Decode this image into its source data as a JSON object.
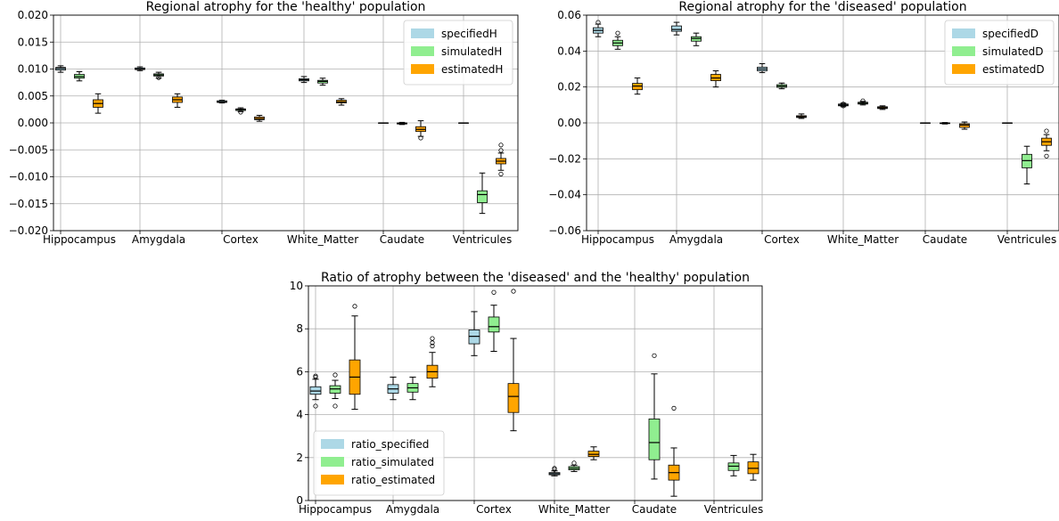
{
  "chart_data": [
    {
      "type": "boxplot",
      "title": "Regional atrophy for the 'healthy' population",
      "xlabel": "",
      "ylabel": "",
      "ylim": [
        -0.02,
        0.02
      ],
      "yticks": [
        -0.02,
        -0.015,
        -0.01,
        -0.005,
        0.0,
        0.005,
        0.01,
        0.015,
        0.02
      ],
      "ytick_labels": [
        "−0.020",
        "−0.015",
        "−0.010",
        "−0.005",
        "0.000",
        "0.005",
        "0.010",
        "0.015",
        "0.020"
      ],
      "categories": [
        "Hippocampus",
        "Amygdala",
        "Cortex",
        "White_Matter",
        "Caudate",
        "Ventricules"
      ],
      "grid": true,
      "legend_position": "top-right",
      "series": [
        {
          "name": "specifiedH",
          "color": "#add8e6",
          "boxes": [
            {
              "whislo": 0.0094,
              "q1": 0.0098,
              "med": 0.0101,
              "q3": 0.0103,
              "whishi": 0.0106,
              "fliers": []
            },
            {
              "whislo": 0.0097,
              "q1": 0.0099,
              "med": 0.01,
              "q3": 0.0102,
              "whishi": 0.0104,
              "fliers": []
            },
            {
              "whislo": 0.0037,
              "q1": 0.0038,
              "med": 0.0039,
              "q3": 0.0041,
              "whishi": 0.0042,
              "fliers": []
            },
            {
              "whislo": 0.0075,
              "q1": 0.0078,
              "med": 0.008,
              "q3": 0.0082,
              "whishi": 0.0086,
              "fliers": []
            },
            {
              "whislo": 0.0,
              "q1": 0.0,
              "med": 0.0,
              "q3": 0.0,
              "whishi": 0.0,
              "fliers": []
            },
            {
              "whislo": 0.0,
              "q1": 0.0,
              "med": 0.0,
              "q3": 0.0,
              "whishi": 0.0,
              "fliers": []
            }
          ]
        },
        {
          "name": "simulatedH",
          "color": "#90ee90",
          "boxes": [
            {
              "whislo": 0.0078,
              "q1": 0.0083,
              "med": 0.0086,
              "q3": 0.009,
              "whishi": 0.0095,
              "fliers": []
            },
            {
              "whislo": 0.0083,
              "q1": 0.0087,
              "med": 0.0089,
              "q3": 0.0091,
              "whishi": 0.0094,
              "fliers": [
                0.0084
              ]
            },
            {
              "whislo": 0.0021,
              "q1": 0.0023,
              "med": 0.0025,
              "q3": 0.0026,
              "whishi": 0.0028,
              "fliers": [
                0.002
              ]
            },
            {
              "whislo": 0.007,
              "q1": 0.0074,
              "med": 0.0077,
              "q3": 0.0079,
              "whishi": 0.0083,
              "fliers": []
            },
            {
              "whislo": -0.0003,
              "q1": -0.0002,
              "med": -0.0001,
              "q3": 0.0,
              "whishi": 0.0001,
              "fliers": []
            },
            {
              "whislo": -0.0168,
              "q1": -0.0148,
              "med": -0.0133,
              "q3": -0.0126,
              "whishi": -0.0093,
              "fliers": []
            }
          ]
        },
        {
          "name": "estimatedH",
          "color": "#ffa500",
          "boxes": [
            {
              "whislo": 0.0018,
              "q1": 0.0029,
              "med": 0.0036,
              "q3": 0.0043,
              "whishi": 0.0054,
              "fliers": []
            },
            {
              "whislo": 0.0029,
              "q1": 0.0038,
              "med": 0.0043,
              "q3": 0.0048,
              "whishi": 0.0054,
              "fliers": []
            },
            {
              "whislo": 0.0003,
              "q1": 0.0006,
              "med": 0.0008,
              "q3": 0.0011,
              "whishi": 0.0014,
              "fliers": []
            },
            {
              "whislo": 0.0033,
              "q1": 0.0037,
              "med": 0.0039,
              "q3": 0.0042,
              "whishi": 0.0045,
              "fliers": []
            },
            {
              "whislo": -0.0025,
              "q1": -0.0016,
              "med": -0.0012,
              "q3": -0.0007,
              "whishi": 0.0004,
              "fliers": [
                -0.0028
              ]
            },
            {
              "whislo": -0.0088,
              "q1": -0.0076,
              "med": -0.0071,
              "q3": -0.0066,
              "whishi": -0.0056,
              "fliers": [
                -0.0041,
                -0.0051,
                -0.0095
              ]
            }
          ]
        }
      ]
    },
    {
      "type": "boxplot",
      "title": "Regional atrophy for the 'diseased' population",
      "xlabel": "",
      "ylabel": "",
      "ylim": [
        -0.06,
        0.06
      ],
      "yticks": [
        -0.06,
        -0.04,
        -0.02,
        0.0,
        0.02,
        0.04,
        0.06
      ],
      "ytick_labels": [
        "−0.06",
        "−0.04",
        "−0.02",
        "0.00",
        "0.02",
        "0.04",
        "0.06"
      ],
      "categories": [
        "Hippocampus",
        "Amygdala",
        "Cortex",
        "White_Matter",
        "Caudate",
        "Ventricules"
      ],
      "grid": true,
      "legend_position": "top-right",
      "series": [
        {
          "name": "specifiedD",
          "color": "#add8e6",
          "boxes": [
            {
              "whislo": 0.048,
              "q1": 0.05,
              "med": 0.0515,
              "q3": 0.053,
              "whishi": 0.055,
              "fliers": [
                0.056
              ]
            },
            {
              "whislo": 0.049,
              "q1": 0.051,
              "med": 0.052,
              "q3": 0.054,
              "whishi": 0.056,
              "fliers": []
            },
            {
              "whislo": 0.028,
              "q1": 0.029,
              "med": 0.03,
              "q3": 0.031,
              "whishi": 0.033,
              "fliers": []
            },
            {
              "whislo": 0.009,
              "q1": 0.0095,
              "med": 0.01,
              "q3": 0.0105,
              "whishi": 0.011,
              "fliers": [
                0.0095,
                0.0105
              ]
            },
            {
              "whislo": 0.0,
              "q1": 0.0,
              "med": 0.0,
              "q3": 0.0,
              "whishi": 0.0,
              "fliers": []
            },
            {
              "whislo": 0.0,
              "q1": 0.0,
              "med": 0.0,
              "q3": 0.0,
              "whishi": 0.0,
              "fliers": []
            }
          ]
        },
        {
          "name": "simulatedD",
          "color": "#90ee90",
          "boxes": [
            {
              "whislo": 0.041,
              "q1": 0.043,
              "med": 0.0445,
              "q3": 0.046,
              "whishi": 0.048,
              "fliers": [
                0.05
              ]
            },
            {
              "whislo": 0.043,
              "q1": 0.0455,
              "med": 0.047,
              "q3": 0.048,
              "whishi": 0.05,
              "fliers": []
            },
            {
              "whislo": 0.019,
              "q1": 0.0198,
              "med": 0.0205,
              "q3": 0.0213,
              "whishi": 0.0222,
              "fliers": []
            },
            {
              "whislo": 0.01,
              "q1": 0.0105,
              "med": 0.011,
              "q3": 0.0115,
              "whishi": 0.012,
              "fliers": [
                0.0123
              ]
            },
            {
              "whislo": -0.0006,
              "q1": -0.0004,
              "med": -0.0002,
              "q3": 0.0,
              "whishi": 0.0002,
              "fliers": []
            },
            {
              "whislo": -0.034,
              "q1": -0.025,
              "med": -0.021,
              "q3": -0.0175,
              "whishi": -0.013,
              "fliers": []
            }
          ]
        },
        {
          "name": "estimatedD",
          "color": "#ffa500",
          "boxes": [
            {
              "whislo": 0.016,
              "q1": 0.0185,
              "med": 0.0205,
              "q3": 0.022,
              "whishi": 0.025,
              "fliers": []
            },
            {
              "whislo": 0.02,
              "q1": 0.0235,
              "med": 0.025,
              "q3": 0.027,
              "whishi": 0.029,
              "fliers": []
            },
            {
              "whislo": 0.0025,
              "q1": 0.003,
              "med": 0.0035,
              "q3": 0.004,
              "whishi": 0.005,
              "fliers": []
            },
            {
              "whislo": 0.0075,
              "q1": 0.008,
              "med": 0.0085,
              "q3": 0.009,
              "whishi": 0.0095,
              "fliers": []
            },
            {
              "whislo": -0.0035,
              "q1": -0.0025,
              "med": -0.0012,
              "q3": -0.0005,
              "whishi": 0.0005,
              "fliers": []
            },
            {
              "whislo": -0.0155,
              "q1": -0.0125,
              "med": -0.0105,
              "q3": -0.0085,
              "whishi": -0.0065,
              "fliers": [
                -0.0045,
                -0.0185
              ]
            }
          ]
        }
      ]
    },
    {
      "type": "boxplot",
      "title": "Ratio of atrophy between the 'diseased' and the 'healthy'  population",
      "xlabel": "",
      "ylabel": "",
      "ylim": [
        0,
        10
      ],
      "yticks": [
        0,
        2,
        4,
        6,
        8,
        10
      ],
      "ytick_labels": [
        "0",
        "2",
        "4",
        "6",
        "8",
        "10"
      ],
      "categories": [
        "Hippocampus",
        "Amygdala",
        "Cortex",
        "White_Matter",
        "Caudate",
        "Ventricules"
      ],
      "grid": true,
      "legend_position": "bottom-left",
      "series": [
        {
          "name": "ratio_specified",
          "color": "#add8e6",
          "boxes": [
            {
              "whislo": 4.7,
              "q1": 4.95,
              "med": 5.1,
              "q3": 5.3,
              "whishi": 5.65,
              "fliers": [
                5.75,
                5.8,
                4.4
              ]
            },
            {
              "whislo": 4.7,
              "q1": 5.0,
              "med": 5.2,
              "q3": 5.4,
              "whishi": 5.75,
              "fliers": []
            },
            {
              "whislo": 6.75,
              "q1": 7.3,
              "med": 7.65,
              "q3": 7.95,
              "whishi": 8.8,
              "fliers": []
            },
            {
              "whislo": 1.15,
              "q1": 1.2,
              "med": 1.25,
              "q3": 1.3,
              "whishi": 1.38,
              "fliers": [
                1.45,
                1.5
              ]
            },
            null,
            null
          ]
        },
        {
          "name": "ratio_simulated",
          "color": "#90ee90",
          "boxes": [
            {
              "whislo": 4.75,
              "q1": 5.0,
              "med": 5.2,
              "q3": 5.35,
              "whishi": 5.6,
              "fliers": [
                5.85,
                4.4
              ]
            },
            {
              "whislo": 4.7,
              "q1": 5.05,
              "med": 5.25,
              "q3": 5.45,
              "whishi": 5.75,
              "fliers": []
            },
            {
              "whislo": 6.95,
              "q1": 7.85,
              "med": 8.1,
              "q3": 8.55,
              "whishi": 9.1,
              "fliers": [
                9.7
              ]
            },
            {
              "whislo": 1.35,
              "q1": 1.43,
              "med": 1.5,
              "q3": 1.58,
              "whishi": 1.65,
              "fliers": [
                1.75
              ]
            },
            {
              "whislo": 1.0,
              "q1": 1.9,
              "med": 2.7,
              "q3": 3.8,
              "whishi": 5.9,
              "fliers": [
                6.75
              ]
            },
            {
              "whislo": 1.15,
              "q1": 1.4,
              "med": 1.6,
              "q3": 1.75,
              "whishi": 2.1,
              "fliers": []
            }
          ]
        },
        {
          "name": "ratio_estimated",
          "color": "#ffa500",
          "boxes": [
            {
              "whislo": 4.25,
              "q1": 4.95,
              "med": 5.75,
              "q3": 6.55,
              "whishi": 8.6,
              "fliers": [
                9.05
              ]
            },
            {
              "whislo": 5.3,
              "q1": 5.7,
              "med": 6.0,
              "q3": 6.3,
              "whishi": 6.9,
              "fliers": [
                7.2,
                7.35,
                7.55
              ]
            },
            {
              "whislo": 3.25,
              "q1": 4.1,
              "med": 4.85,
              "q3": 5.45,
              "whishi": 7.55,
              "fliers": [
                9.75
              ]
            },
            {
              "whislo": 1.9,
              "q1": 2.05,
              "med": 2.15,
              "q3": 2.3,
              "whishi": 2.5,
              "fliers": []
            },
            {
              "whislo": 0.2,
              "q1": 0.95,
              "med": 1.3,
              "q3": 1.65,
              "whishi": 2.45,
              "fliers": [
                4.3
              ]
            },
            {
              "whislo": 0.95,
              "q1": 1.25,
              "med": 1.5,
              "q3": 1.8,
              "whishi": 2.15,
              "fliers": []
            }
          ]
        }
      ]
    }
  ]
}
